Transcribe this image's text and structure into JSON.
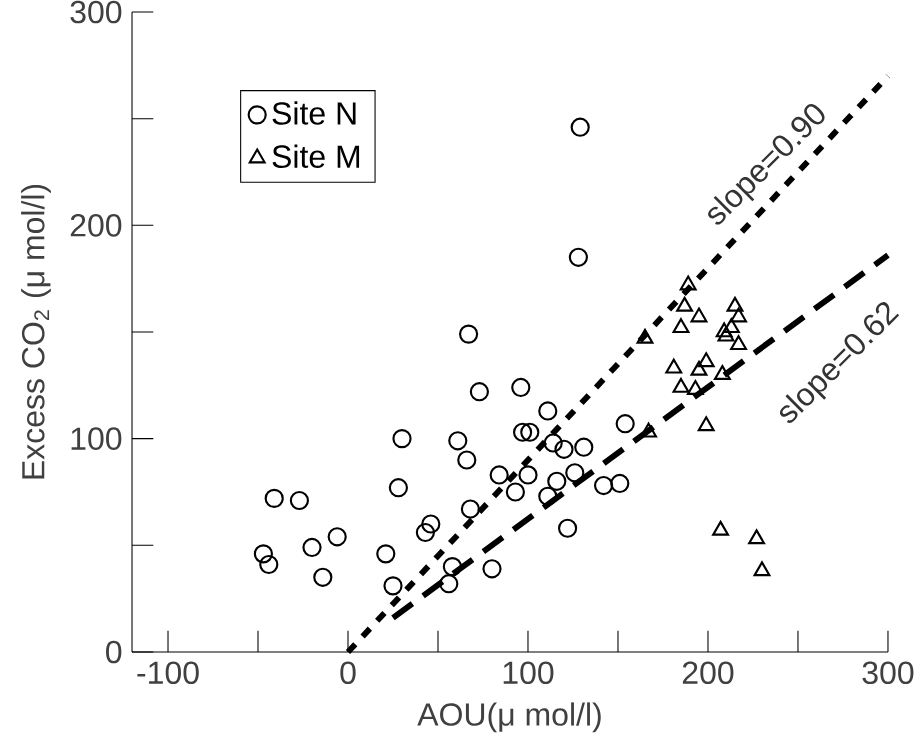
{
  "chart_data": {
    "type": "scatter",
    "xlabel": "AOU(μ mol/l)",
    "ylabel": "Excess CO$_{2}$ (μ mol/l)",
    "xlim": [
      -120,
      300
    ],
    "ylim": [
      0,
      300
    ],
    "xticks": [
      -100,
      {
        "value": -50,
        "label": null
      },
      0,
      {
        "value": 50,
        "label": null
      },
      100,
      {
        "value": 150,
        "label": null
      },
      200,
      {
        "value": 250,
        "label": null
      },
      300
    ],
    "yticks": [
      0,
      {
        "value": 50,
        "label": null
      },
      100,
      {
        "value": 150,
        "label": null
      },
      200,
      {
        "value": 250,
        "label": null
      },
      300
    ],
    "legend": "top left",
    "grid": false,
    "series": [
      {
        "name": "Site N",
        "marker": "circle",
        "color": "#000000",
        "x": [
          129,
          128,
          67,
          73,
          96,
          111,
          30,
          61,
          97,
          101,
          114,
          120,
          131,
          154,
          66,
          84,
          100,
          116,
          126,
          93,
          111,
          142,
          151,
          28,
          68,
          -41,
          -27,
          -6,
          -20,
          -14,
          -47,
          -44,
          21,
          25,
          46,
          43,
          58,
          56,
          80,
          122
        ],
        "values": [
          246,
          185,
          149,
          122,
          124,
          113,
          100,
          99,
          103,
          103,
          98,
          95,
          96,
          107,
          90,
          83,
          83,
          80,
          84,
          75,
          73,
          78,
          79,
          77,
          67,
          72,
          71,
          54,
          49,
          35,
          46,
          41,
          46,
          31,
          60,
          56,
          40,
          32,
          39,
          58
        ]
      },
      {
        "name": "Site M",
        "marker": "triangle",
        "color": "#000000",
        "x": [
          189,
          187,
          185,
          195,
          165,
          215,
          217,
          213,
          209,
          210,
          217,
          181,
          199,
          195,
          185,
          193,
          208,
          199,
          167,
          207,
          227,
          230
        ],
        "values": [
          172,
          162,
          152,
          157,
          147,
          162,
          157,
          152,
          150,
          148,
          144,
          133,
          136,
          132,
          124,
          123,
          130,
          106,
          103,
          57,
          53,
          38
        ]
      },
      {
        "type": "line",
        "line_style": "dotted",
        "color": "#000000",
        "x": [
          0,
          300
        ],
        "values": [
          0,
          270
        ]
      },
      {
        "type": "line",
        "line_style": "dashed",
        "color": "#000000",
        "x": [
          25,
          300
        ],
        "values": [
          16,
          186
        ]
      }
    ],
    "annotations": [
      "slope=0.90",
      "slope=0.62"
    ]
  }
}
